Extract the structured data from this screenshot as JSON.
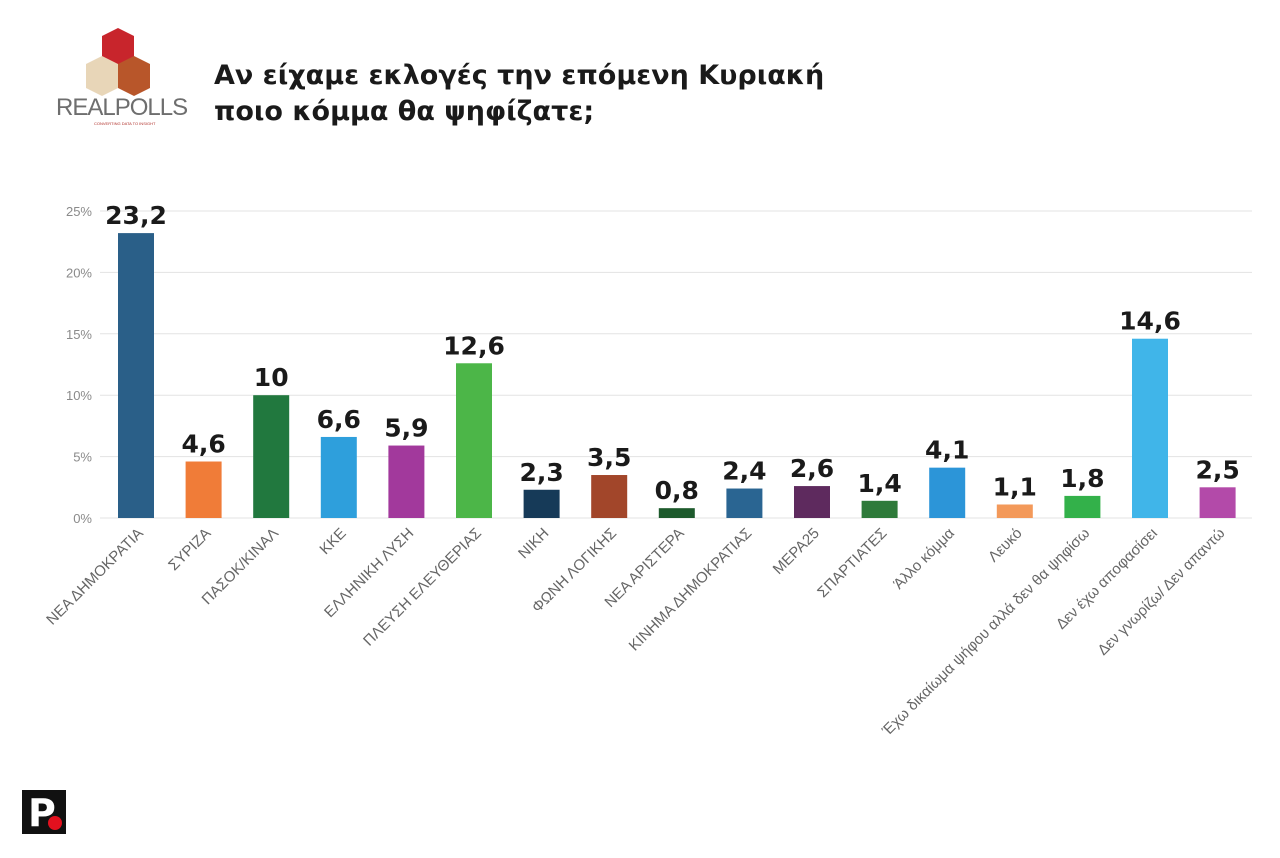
{
  "header": {
    "title_line1": "Αν είχαμε εκλογές την επόμενη Κυριακή",
    "title_line2": "ποιο κόμμα θα ψηφίζατε;",
    "logo_text": "REALPOLLS",
    "logo_tagline": "CONVERTING DATA TO INSIGHT",
    "footer_logo": "P"
  },
  "chart_data": {
    "type": "bar",
    "title": "Αν είχαμε εκλογές την επόμενη Κυριακή ποιο κόμμα θα ψηφίζατε;",
    "ylim": [
      0,
      25
    ],
    "yticks": [
      "0%",
      "5%",
      "10%",
      "15%",
      "20%",
      "25%"
    ],
    "grid": true,
    "categories": [
      "ΝΕΑ ΔΗΜΟΚΡΑΤΙΑ",
      "ΣΥΡΙΖΑ",
      "ΠΑΣΟΚ/ΚΙΝΑΛ",
      "ΚΚΕ",
      "ΕΛΛΗΝΙΚΗ ΛΥΣΗ",
      "ΠΛΕΥΣΗ ΕΛΕΥΘΕΡΙΑΣ",
      "ΝΙΚΗ",
      "ΦΩΝΗ ΛΟΓΙΚΗΣ",
      "ΝΕΑ ΑΡΙΣΤΕΡΑ",
      "ΚΙΝΗΜΑ ΔΗΜΟΚΡΑΤΙΑΣ",
      "ΜΕΡΑ25",
      "ΣΠΑΡΤΙΑΤΕΣ",
      "Άλλο κόμμα",
      "Λευκό",
      "Έχω δικαίωμα ψήφου αλλά δεν θα ψηφίσω",
      "Δεν έχω αποφασίσει",
      "Δεν γνωρίζω/ Δεν απαντώ"
    ],
    "values": [
      23.2,
      4.6,
      10,
      6.6,
      5.9,
      12.6,
      2.3,
      3.5,
      0.8,
      2.4,
      2.6,
      1.4,
      4.1,
      1.1,
      1.8,
      14.6,
      2.5
    ],
    "data_labels": [
      "23,2",
      "4,6",
      "10",
      "6,6",
      "5,9",
      "12,6",
      "2,3",
      "3,5",
      "0,8",
      "2,4",
      "2,6",
      "1,4",
      "4,1",
      "1,1",
      "1,8",
      "14,6",
      "2,5"
    ],
    "colors": [
      "#2a5f88",
      "#f07c38",
      "#21783e",
      "#2e9fdc",
      "#a2399c",
      "#4cb648",
      "#163a58",
      "#a2462a",
      "#1d5a2c",
      "#2a6592",
      "#5e2a5e",
      "#2e7a3a",
      "#2c95d8",
      "#f3995a",
      "#33b14a",
      "#40b5e9",
      "#b34aa9"
    ]
  }
}
